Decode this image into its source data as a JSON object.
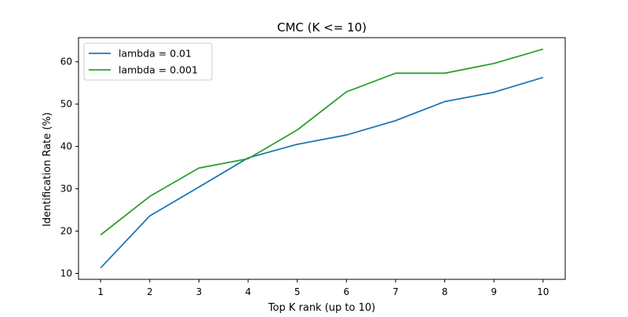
{
  "chart_data": {
    "type": "line",
    "title": "CMC (K <= 10)",
    "xlabel": "Top K rank (up to 10)",
    "ylabel": "Identification Rate (%)",
    "x": [
      1,
      2,
      3,
      4,
      5,
      6,
      7,
      8,
      9,
      10
    ],
    "xticks": [
      "1",
      "2",
      "3",
      "4",
      "5",
      "6",
      "7",
      "8",
      "9",
      "10"
    ],
    "yticks": [
      "10",
      "20",
      "30",
      "40",
      "50",
      "60"
    ],
    "xlim": [
      0.55,
      10.45
    ],
    "ylim": [
      8.6,
      65.7
    ],
    "grid": false,
    "legend_position": "upper left",
    "series": [
      {
        "name": "lambda = 0.01",
        "color": "#1f77b4",
        "values": [
          11.3,
          23.6,
          30.4,
          37.3,
          40.5,
          42.7,
          46.1,
          50.6,
          52.8,
          56.3
        ]
      },
      {
        "name": "lambda = 0.001",
        "color": "#2ca02c",
        "values": [
          19.1,
          28.2,
          34.9,
          37.1,
          43.9,
          52.9,
          57.3,
          57.3,
          59.6,
          63.0
        ]
      }
    ]
  }
}
